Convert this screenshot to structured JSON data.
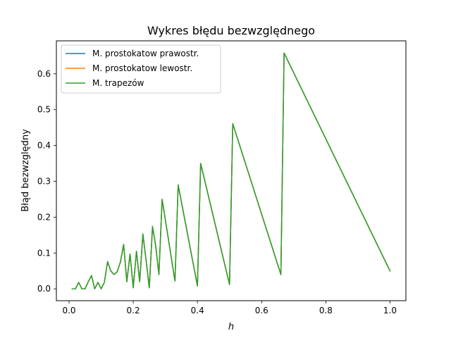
{
  "chart_data": {
    "type": "line",
    "title": "Wykres błędu bezwzględnego",
    "xlabel": "h",
    "ylabel": "Błąd bezwzględny",
    "xlim": [
      -0.0395,
      1.0495
    ],
    "ylim": [
      -0.033,
      0.692
    ],
    "xticks": [
      0.0,
      0.2,
      0.4,
      0.6,
      0.8,
      1.0
    ],
    "xtick_labels": [
      "0.0",
      "0.2",
      "0.4",
      "0.6",
      "0.8",
      "1.0"
    ],
    "yticks": [
      0.0,
      0.1,
      0.2,
      0.3,
      0.4,
      0.5,
      0.6
    ],
    "ytick_labels": [
      "0.0",
      "0.1",
      "0.2",
      "0.3",
      "0.4",
      "0.5",
      "0.6"
    ],
    "grid": false,
    "legend_position": "top-left",
    "x": [
      0.01,
      0.02,
      0.03,
      0.04,
      0.05,
      0.06,
      0.07,
      0.08,
      0.09,
      0.1,
      0.11,
      0.12,
      0.13,
      0.14,
      0.15,
      0.16,
      0.17,
      0.18,
      0.19,
      0.2,
      0.21,
      0.22,
      0.23,
      0.24,
      0.25,
      0.26,
      0.27,
      0.28,
      0.29,
      0.33,
      0.34,
      0.4,
      0.41,
      0.5,
      0.51,
      0.66,
      0.67,
      1.0
    ],
    "series": [
      {
        "name": "M. prostokatow prawostr.",
        "color": "#1f77b4",
        "values": [
          0.0,
          0.0,
          0.018,
          0.0,
          0.0,
          0.02,
          0.037,
          0.0,
          0.018,
          0.0,
          0.018,
          0.076,
          0.05,
          0.04,
          0.048,
          0.075,
          0.124,
          0.02,
          0.097,
          0.003,
          0.105,
          0.02,
          0.153,
          0.08,
          0.003,
          0.174,
          0.12,
          0.04,
          0.25,
          0.022,
          0.29,
          0.008,
          0.35,
          0.012,
          0.461,
          0.04,
          0.658,
          0.05
        ]
      },
      {
        "name": "M. prostokatow lewostr.",
        "color": "#ff7f0e",
        "values": [
          0.0,
          0.0,
          0.018,
          0.0,
          0.0,
          0.02,
          0.037,
          0.0,
          0.018,
          0.0,
          0.018,
          0.076,
          0.05,
          0.04,
          0.048,
          0.075,
          0.124,
          0.02,
          0.097,
          0.003,
          0.105,
          0.02,
          0.153,
          0.08,
          0.003,
          0.174,
          0.12,
          0.04,
          0.25,
          0.022,
          0.29,
          0.008,
          0.35,
          0.012,
          0.461,
          0.04,
          0.658,
          0.05
        ]
      },
      {
        "name": "M. trapezów",
        "color": "#2ca02c",
        "values": [
          0.0,
          0.0,
          0.018,
          0.0,
          0.0,
          0.02,
          0.037,
          0.0,
          0.018,
          0.0,
          0.018,
          0.076,
          0.05,
          0.04,
          0.048,
          0.075,
          0.124,
          0.02,
          0.097,
          0.003,
          0.105,
          0.02,
          0.153,
          0.08,
          0.003,
          0.174,
          0.12,
          0.04,
          0.25,
          0.022,
          0.29,
          0.008,
          0.35,
          0.012,
          0.461,
          0.04,
          0.658,
          0.05
        ]
      }
    ]
  }
}
